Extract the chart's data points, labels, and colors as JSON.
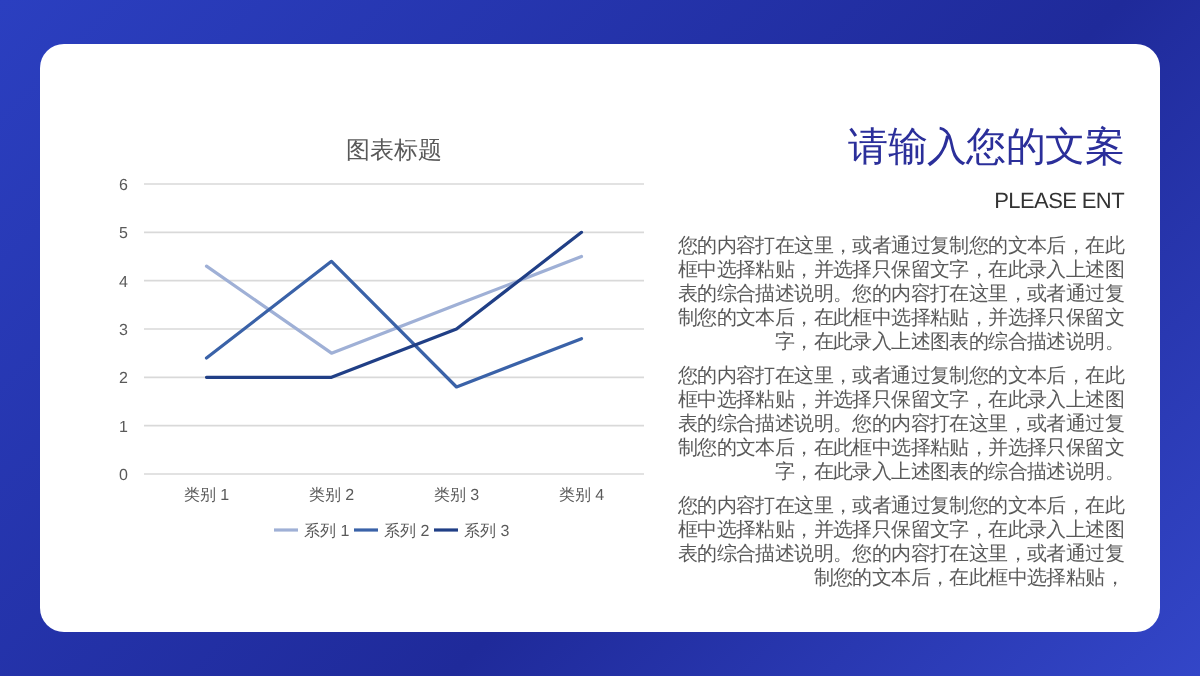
{
  "chart_data": {
    "type": "line",
    "title": "图表标题",
    "categories": [
      "类别 1",
      "类别 2",
      "类别 3",
      "类别 4"
    ],
    "series": [
      {
        "name": "系列 1",
        "color": "#9fb0d6",
        "values": [
          4.3,
          2.5,
          3.5,
          4.5
        ]
      },
      {
        "name": "系列 2",
        "color": "#3a62a8",
        "values": [
          2.4,
          4.4,
          1.8,
          2.8
        ]
      },
      {
        "name": "系列 3",
        "color": "#203f86",
        "values": [
          2,
          2,
          3,
          5
        ]
      }
    ],
    "ylim": [
      0,
      6
    ],
    "yticks": [
      0,
      1,
      2,
      3,
      4,
      5,
      6
    ],
    "grid": "y",
    "legend": "bottom",
    "annotations": [
      "请输入您的文案",
      "PLEASE ENT",
      "您的内容打在这里，或者通过复制您的文本后，在此框中选择粘贴，并选择只保留文字，在此录入上述图表的综合描述说明。您的内容打在这里，或者通过复制您的文本后，在此框中选择粘贴，并选择只保留文字，在此录入上述图表的综合描述说明。",
      "您的内容打在这里，或者通过复制您的文本后，在此框中选择粘贴，并选择只保留文字，在此录入上述图表的综合描述说明。您的内容打在这里，或者通过复制您的文本后，在此框中选择粘贴，并选择只保留文字，在此录入上述图表的综合描述说明。",
      "您的内容打在这里，或者通过复制您的文本后，在此框中选择粘贴，并选择只保留文字，在此录入上述图表的综合描述说明。您的内容打在这里，或者通过复制您的文本后，在此框中选择粘贴，"
    ]
  }
}
